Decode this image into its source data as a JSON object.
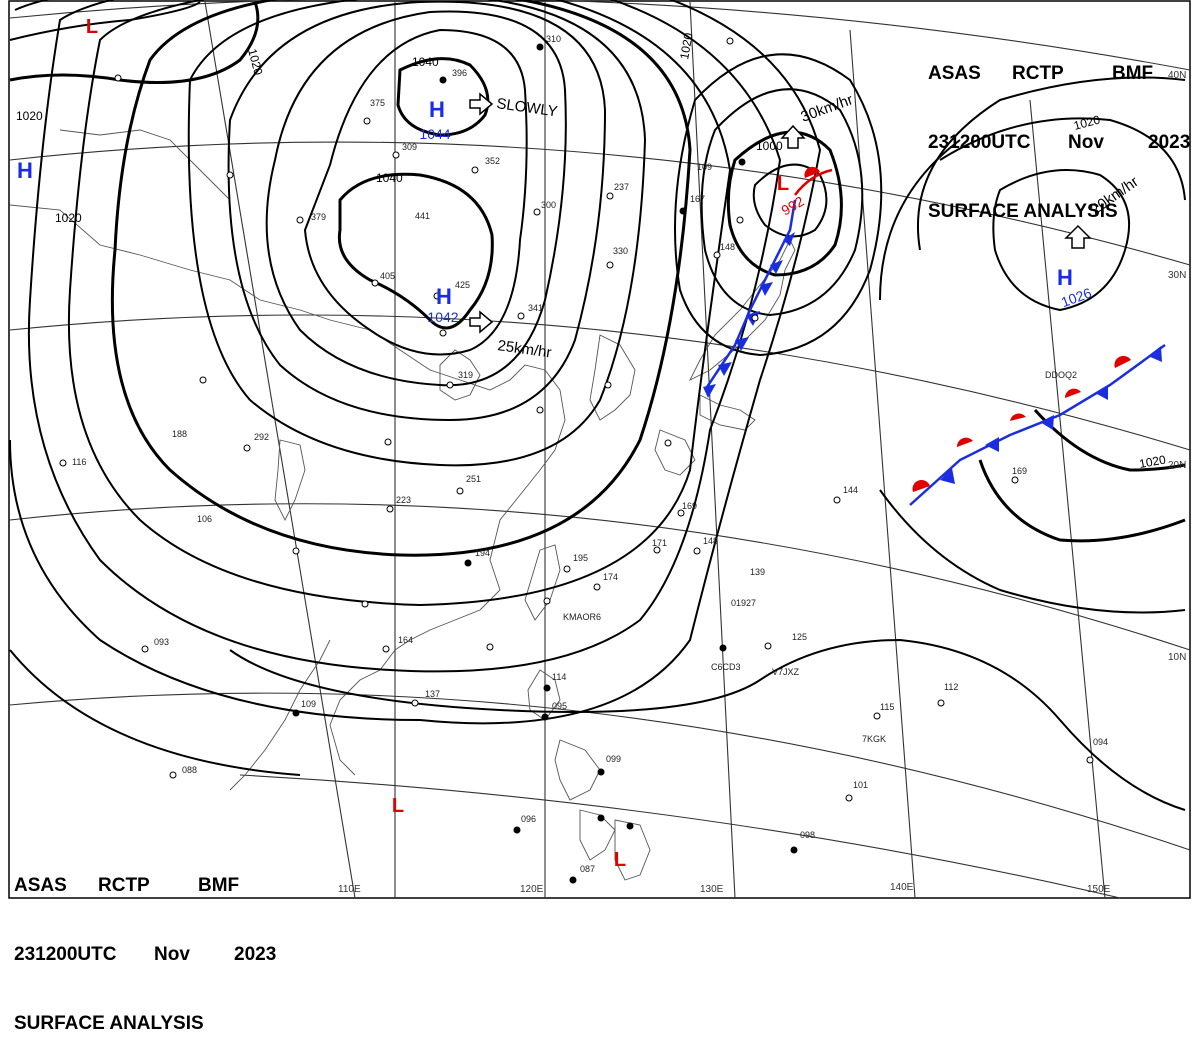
{
  "header": {
    "line1": [
      "ASAS",
      "RCTP",
      "BMF"
    ],
    "line2": [
      "231200UTC",
      "Nov",
      "2023"
    ],
    "line3": "SURFACE ANALYSIS"
  },
  "colors": {
    "high": "#1a2ee0",
    "low": "#e00000",
    "front_cold": "#1a2ee0",
    "front_warm": "#e00000",
    "isobar": "#000000",
    "coast": "#555555",
    "grid": "#333333"
  },
  "pressure_centers": [
    {
      "type": "H",
      "value": "1044"
    },
    {
      "type": "H",
      "value": "1042"
    },
    {
      "type": "H",
      "value": "1026"
    },
    {
      "type": "H",
      "value": ""
    },
    {
      "type": "L",
      "value": "992"
    },
    {
      "type": "L",
      "value": ""
    },
    {
      "type": "L",
      "value": ""
    },
    {
      "type": "L",
      "value": ""
    }
  ],
  "movements": [
    "SLOWLY",
    "25km/hr",
    "30km/hr",
    "20km/hr"
  ],
  "isobar_labels": [
    "1040",
    "1040",
    "1020",
    "1020",
    "1020",
    "1020",
    "1020",
    "1020",
    "1000"
  ],
  "longitude_labels": [
    "110E",
    "120E",
    "130E",
    "140E",
    "150E"
  ],
  "latitude_labels": [
    "40N",
    "30N",
    "20N",
    "10N"
  ],
  "ship_callsigns": [
    "DDOQ2",
    "01927",
    "V7JXZ",
    "C6CD3",
    "KMAOR6",
    "7KGK"
  ],
  "station_numbers": [
    "375",
    "396",
    "309",
    "352",
    "379",
    "441",
    "405",
    "425",
    "310",
    "300",
    "237",
    "109",
    "167",
    "148",
    "330",
    "341",
    "319",
    "292",
    "188",
    "116",
    "223",
    "251",
    "106",
    "194",
    "195",
    "174",
    "169",
    "171",
    "148",
    "139",
    "144",
    "169",
    "164",
    "137",
    "114",
    "095",
    "099",
    "093",
    "088",
    "109",
    "115",
    "112",
    "101",
    "096",
    "098",
    "087",
    "094",
    "125"
  ]
}
